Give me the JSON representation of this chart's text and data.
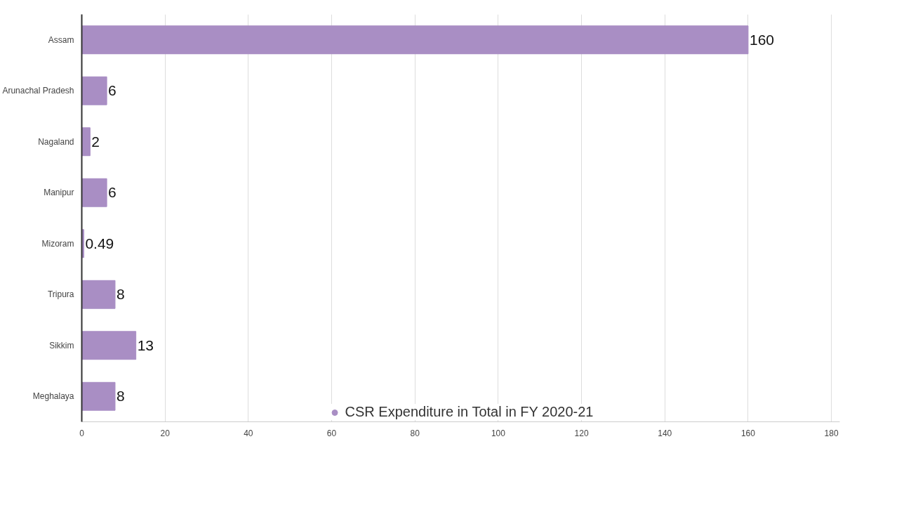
{
  "chart_data": {
    "type": "bar",
    "orientation": "horizontal",
    "categories": [
      "Assam",
      "Arunachal Pradesh",
      "Nagaland",
      "Manipur",
      "Mizoram",
      "Tripura",
      "Sikkim",
      "Meghalaya"
    ],
    "series": [
      {
        "name": "CSR Expenditure in Total in FY 2020-21",
        "color": "#a98ec4",
        "values": [
          160,
          6,
          2,
          6,
          0.49,
          8,
          13,
          8
        ]
      }
    ],
    "xlim": [
      0,
      182
    ],
    "xticks": [
      0,
      20,
      40,
      60,
      80,
      100,
      120,
      140,
      160,
      180
    ],
    "grid": "x",
    "legend": "bottom",
    "marker": "circle",
    "data_labels": true
  }
}
